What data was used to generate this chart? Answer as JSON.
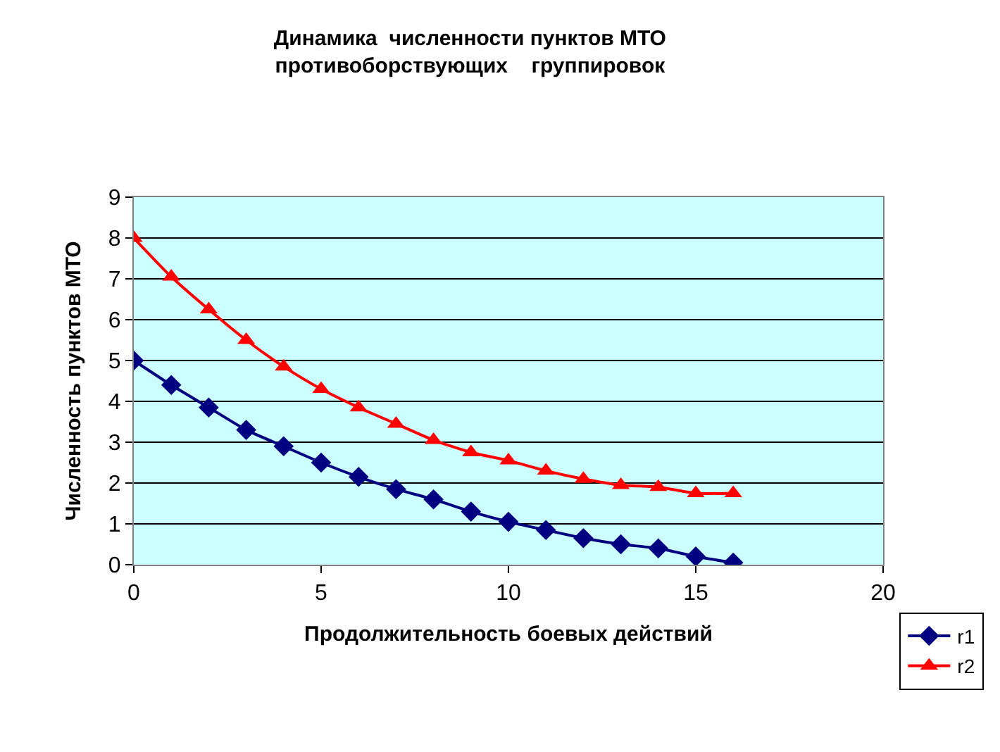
{
  "chart_data": {
    "type": "line",
    "title": "Динамика  численности пунктов МТО\nпротивоборствующих    группировок",
    "xlabel": "Продолжительность боевых действий",
    "ylabel": "Численность пунктов МТО",
    "x": [
      0,
      1,
      2,
      3,
      4,
      5,
      6,
      7,
      8,
      9,
      10,
      11,
      12,
      13,
      14,
      15,
      16
    ],
    "series": [
      {
        "name": "r1",
        "color": "#000080",
        "marker": "diamond",
        "values": [
          5,
          4.4,
          3.85,
          3.3,
          2.9,
          2.5,
          2.15,
          1.85,
          1.6,
          1.3,
          1.05,
          0.85,
          0.65,
          0.5,
          0.4,
          0.2,
          0.05
        ]
      },
      {
        "name": "r2",
        "color": "#ff0000",
        "marker": "triangle",
        "values": [
          8,
          7.05,
          6.25,
          5.5,
          4.85,
          4.3,
          3.85,
          3.45,
          3.05,
          2.75,
          2.55,
          2.3,
          2.1,
          1.95,
          1.9,
          1.75,
          1.75
        ]
      }
    ],
    "xlim": [
      0,
      20
    ],
    "xticks": [
      0,
      5,
      10,
      15,
      20
    ],
    "ylim": [
      0,
      9
    ],
    "yticks": [
      0,
      1,
      2,
      3,
      4,
      5,
      6,
      7,
      8,
      9
    ],
    "grid": "y",
    "legend": "bottom right"
  }
}
